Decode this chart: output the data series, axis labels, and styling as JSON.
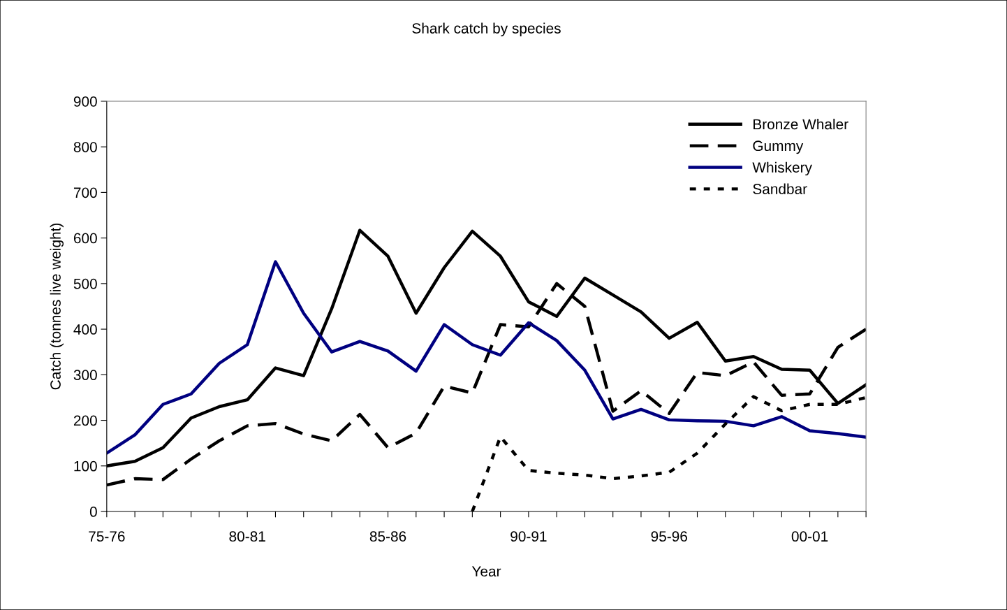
{
  "chart_data": {
    "type": "line",
    "title": "Shark catch by species",
    "xlabel": "Year",
    "ylabel": "Catch (tonnes live weight)",
    "categories": [
      "75-76",
      null,
      null,
      null,
      null,
      "80-81",
      null,
      null,
      null,
      null,
      "85-86",
      null,
      null,
      null,
      null,
      "90-91",
      null,
      null,
      null,
      null,
      "95-96",
      null,
      null,
      null,
      null,
      "00-01",
      null,
      null
    ],
    "series": [
      {
        "name": "Bronze Whaler",
        "color": "#000000",
        "line_style": "solid",
        "values": [
          100,
          110,
          140,
          205,
          230,
          245,
          315,
          298,
          445,
          617,
          560,
          435,
          535,
          615,
          560,
          460,
          428,
          512,
          475,
          438,
          380,
          415,
          330,
          340,
          312,
          310,
          237,
          278
        ]
      },
      {
        "name": "Gummy",
        "color": "#000000",
        "line_style": "dashed",
        "values": [
          58,
          72,
          70,
          115,
          155,
          188,
          193,
          170,
          155,
          213,
          140,
          172,
          275,
          260,
          410,
          405,
          500,
          450,
          220,
          265,
          215,
          305,
          298,
          328,
          255,
          258,
          360,
          400
        ]
      },
      {
        "name": "Whiskery",
        "color": "#000080",
        "line_style": "solid",
        "values": [
          128,
          168,
          235,
          258,
          325,
          366,
          548,
          435,
          350,
          373,
          352,
          308,
          410,
          366,
          343,
          414,
          375,
          310,
          203,
          224,
          201,
          199,
          198,
          188,
          208,
          177,
          171,
          163
        ]
      },
      {
        "name": "Sandbar",
        "color": "#000000",
        "line_style": "dotted",
        "values": [
          null,
          null,
          null,
          null,
          null,
          null,
          null,
          null,
          null,
          null,
          null,
          null,
          null,
          0,
          164,
          90,
          84,
          80,
          72,
          78,
          86,
          128,
          192,
          252,
          221,
          235,
          235,
          250
        ]
      }
    ],
    "ylim": [
      0,
      900
    ],
    "yticks": [
      0,
      100,
      200,
      300,
      400,
      500,
      600,
      700,
      800,
      900
    ],
    "grid": false,
    "legend": "top right",
    "marker": "none"
  }
}
